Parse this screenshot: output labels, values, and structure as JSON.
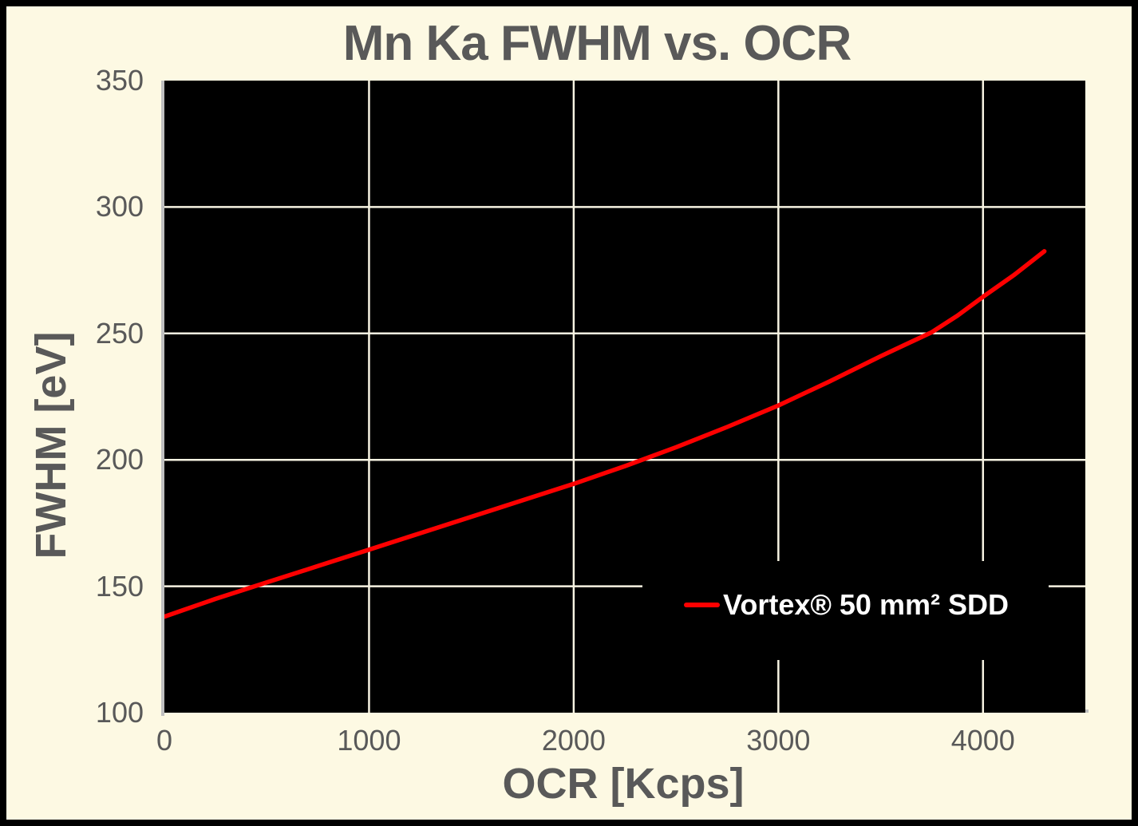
{
  "chart_data": {
    "type": "line",
    "title": "Mn Ka FWHM vs. OCR",
    "xlabel": "OCR [Kcps]",
    "ylabel": "FWHM [eV]",
    "xlim": [
      0,
      4500
    ],
    "ylim": [
      100,
      350
    ],
    "x_ticks": [
      0,
      1000,
      2000,
      3000,
      4000
    ],
    "y_ticks": [
      100,
      150,
      200,
      250,
      300,
      350
    ],
    "x_gridlines": [
      1000,
      2000,
      3000,
      4000
    ],
    "y_gridlines": [
      150,
      200,
      250,
      300
    ],
    "grid": true,
    "plot_background": "#000000",
    "page_background": "#FDF9E3",
    "gridline_color": "#F7F3E2",
    "axis_line_color": "#BFBFBF",
    "text_color": "#595959",
    "legend_position": "inside-lower-right",
    "legend_text_color": "#FFFFFF",
    "series": [
      {
        "name": "Vortex® 50 mm² SDD",
        "color": "#FE0000",
        "points": [
          [
            0,
            138
          ],
          [
            250,
            145
          ],
          [
            500,
            151.5
          ],
          [
            750,
            158
          ],
          [
            1000,
            164.5
          ],
          [
            1250,
            171
          ],
          [
            1500,
            177.5
          ],
          [
            1750,
            184
          ],
          [
            2000,
            190.5
          ],
          [
            2250,
            197.5
          ],
          [
            2500,
            205
          ],
          [
            2750,
            213
          ],
          [
            3000,
            221.5
          ],
          [
            3250,
            231
          ],
          [
            3500,
            241
          ],
          [
            3750,
            250.5
          ],
          [
            3875,
            257
          ],
          [
            4000,
            264.5
          ],
          [
            4150,
            273
          ],
          [
            4300,
            282.5
          ]
        ]
      }
    ]
  }
}
